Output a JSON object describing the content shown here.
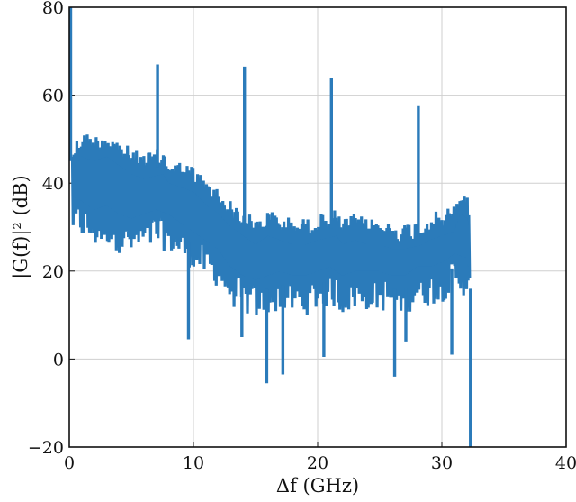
{
  "chart_data": {
    "type": "line",
    "title": "",
    "xlabel": "Δf (GHz)",
    "ylabel": "|G(f)|² (dB)",
    "xlim": [
      0,
      40
    ],
    "ylim": [
      -20,
      80
    ],
    "xticks": [
      0,
      10,
      20,
      30,
      40
    ],
    "yticks": [
      -20,
      0,
      20,
      40,
      60,
      80
    ],
    "xtick_labels": [
      "0",
      "10",
      "20",
      "30",
      "40"
    ],
    "ytick_labels": [
      "−20",
      "0",
      "20",
      "40",
      "60",
      "80"
    ],
    "grid": true,
    "legend": null,
    "series": [
      {
        "name": "|G(f)|²",
        "color": "#2b7bba",
        "description": "Dense noisy spectrum; band-limited to ~32.3 GHz with pilot tones every 7 GHz",
        "upper_envelope": {
          "x": [
            0.3,
            1,
            2,
            3,
            4,
            5,
            6,
            7.5,
            8,
            9,
            10,
            11,
            12,
            13,
            14.5,
            15,
            16,
            17,
            18,
            19,
            20,
            21.5,
            22,
            23,
            24,
            25,
            26,
            27,
            28.5,
            29,
            30,
            31,
            31.5,
            32,
            32.3
          ],
          "y": [
            49,
            52,
            51,
            52,
            50,
            48,
            47,
            48,
            46,
            45,
            44,
            41,
            39,
            36,
            33,
            32,
            34,
            33,
            32,
            32,
            33,
            34,
            32,
            33,
            32,
            32,
            31,
            31,
            32,
            33,
            34,
            35,
            39,
            38,
            35
          ]
        },
        "lower_envelope": {
          "x": [
            0.3,
            1,
            2,
            3,
            4,
            5,
            6,
            7,
            8,
            9,
            10,
            11,
            12,
            13,
            14,
            15,
            16,
            17,
            18,
            19,
            20,
            21,
            22,
            23,
            24,
            25,
            26,
            27,
            28,
            29,
            30,
            31,
            32,
            32.3
          ],
          "y": [
            28,
            27,
            25,
            26,
            24,
            23,
            24,
            25,
            24,
            22,
            20,
            18,
            16,
            12,
            10,
            9,
            10,
            11,
            10,
            10,
            11,
            12,
            10,
            11,
            11,
            11,
            10,
            10,
            12,
            12,
            13,
            15,
            14,
            10
          ]
        },
        "deep_dips": [
          {
            "x": 9.6,
            "y": 4.5
          },
          {
            "x": 13.9,
            "y": 5
          },
          {
            "x": 15.9,
            "y": -5.5
          },
          {
            "x": 17.2,
            "y": -3.5
          },
          {
            "x": 20.5,
            "y": 0.5
          },
          {
            "x": 26.2,
            "y": -4
          },
          {
            "x": 27.1,
            "y": 4
          },
          {
            "x": 30.8,
            "y": 1
          },
          {
            "x": 32.3,
            "y": -20
          }
        ],
        "spikes": [
          {
            "x": 0.0,
            "y": 80
          },
          {
            "x": 7.0,
            "y": 67
          },
          {
            "x": 14.0,
            "y": 66.5
          },
          {
            "x": 21.0,
            "y": 64
          },
          {
            "x": 28.0,
            "y": 57.5
          }
        ],
        "cutoff_x": 32.3
      }
    ]
  }
}
